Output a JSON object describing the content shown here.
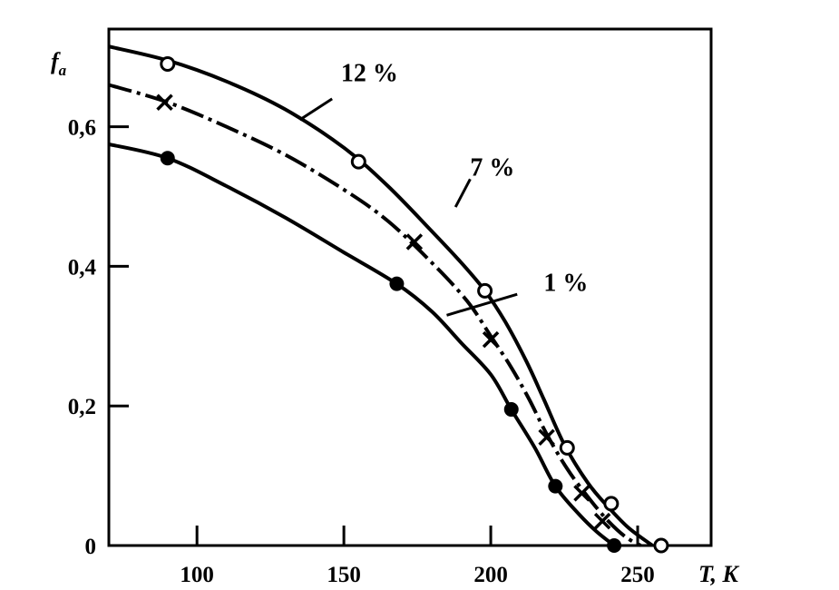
{
  "chart_data": {
    "type": "line",
    "title": "",
    "xlabel": "T, K",
    "ylabel": "f",
    "ylabel_sub": "a",
    "xlim": [
      70,
      275
    ],
    "ylim": [
      0,
      0.74
    ],
    "x_ticks": [
      100,
      150,
      200,
      250
    ],
    "x_tick_labels": [
      "100",
      "150",
      "200",
      "250"
    ],
    "y_ticks": [
      0,
      0.2,
      0.4,
      0.6
    ],
    "y_tick_labels": [
      "0",
      "0,2",
      "0,4",
      "0,6"
    ],
    "grid": false,
    "series": [
      {
        "name": "12 %",
        "marker": "open-circle",
        "line_style": "solid",
        "curve": [
          [
            70,
            0.715
          ],
          [
            90,
            0.695
          ],
          [
            110,
            0.665
          ],
          [
            130,
            0.625
          ],
          [
            150,
            0.57
          ],
          [
            165,
            0.515
          ],
          [
            180,
            0.45
          ],
          [
            190,
            0.405
          ],
          [
            198,
            0.365
          ],
          [
            205,
            0.32
          ],
          [
            212,
            0.265
          ],
          [
            218,
            0.21
          ],
          [
            225,
            0.145
          ],
          [
            233,
            0.09
          ],
          [
            240,
            0.055
          ],
          [
            247,
            0.025
          ],
          [
            255,
            0.0
          ]
        ],
        "points": [
          [
            90,
            0.69
          ],
          [
            155,
            0.55
          ],
          [
            198,
            0.365
          ],
          [
            226,
            0.14
          ],
          [
            241,
            0.06
          ],
          [
            258,
            0.0
          ]
        ]
      },
      {
        "name": "7 %",
        "marker": "cross",
        "line_style": "dash-dot",
        "curve": [
          [
            70,
            0.66
          ],
          [
            90,
            0.635
          ],
          [
            110,
            0.6
          ],
          [
            130,
            0.56
          ],
          [
            150,
            0.51
          ],
          [
            165,
            0.465
          ],
          [
            180,
            0.405
          ],
          [
            192,
            0.35
          ],
          [
            200,
            0.3
          ],
          [
            207,
            0.255
          ],
          [
            213,
            0.21
          ],
          [
            219,
            0.16
          ],
          [
            226,
            0.11
          ],
          [
            233,
            0.07
          ],
          [
            240,
            0.035
          ],
          [
            246,
            0.012
          ],
          [
            251,
            0.0
          ]
        ],
        "points": [
          [
            89,
            0.635
          ],
          [
            174,
            0.435
          ],
          [
            200,
            0.295
          ],
          [
            219,
            0.155
          ],
          [
            231,
            0.075
          ],
          [
            238,
            0.035
          ]
        ]
      },
      {
        "name": "1 %",
        "marker": "filled-circle",
        "line_style": "solid",
        "curve": [
          [
            70,
            0.575
          ],
          [
            90,
            0.555
          ],
          [
            110,
            0.515
          ],
          [
            130,
            0.47
          ],
          [
            150,
            0.42
          ],
          [
            168,
            0.375
          ],
          [
            180,
            0.335
          ],
          [
            190,
            0.29
          ],
          [
            200,
            0.245
          ],
          [
            207,
            0.195
          ],
          [
            215,
            0.14
          ],
          [
            222,
            0.085
          ],
          [
            230,
            0.045
          ],
          [
            236,
            0.02
          ],
          [
            242,
            0.0
          ]
        ],
        "points": [
          [
            90,
            0.555
          ],
          [
            168,
            0.375
          ],
          [
            207,
            0.195
          ],
          [
            222,
            0.085
          ],
          [
            242,
            0.0
          ]
        ]
      }
    ],
    "annotations": [
      {
        "text": "12 %",
        "series": 0,
        "from": [
          135,
          0.61
        ],
        "to": [
          146,
          0.64
        ],
        "at": [
          149,
          0.665
        ]
      },
      {
        "text": "7 %",
        "series": 1,
        "from": [
          188,
          0.485
        ],
        "to": [
          193,
          0.525
        ],
        "at": [
          193,
          0.53
        ]
      },
      {
        "text": "1 %",
        "series": 2,
        "from": [
          185,
          0.33
        ],
        "to": [
          209,
          0.36
        ],
        "at": [
          218,
          0.365
        ]
      }
    ]
  }
}
